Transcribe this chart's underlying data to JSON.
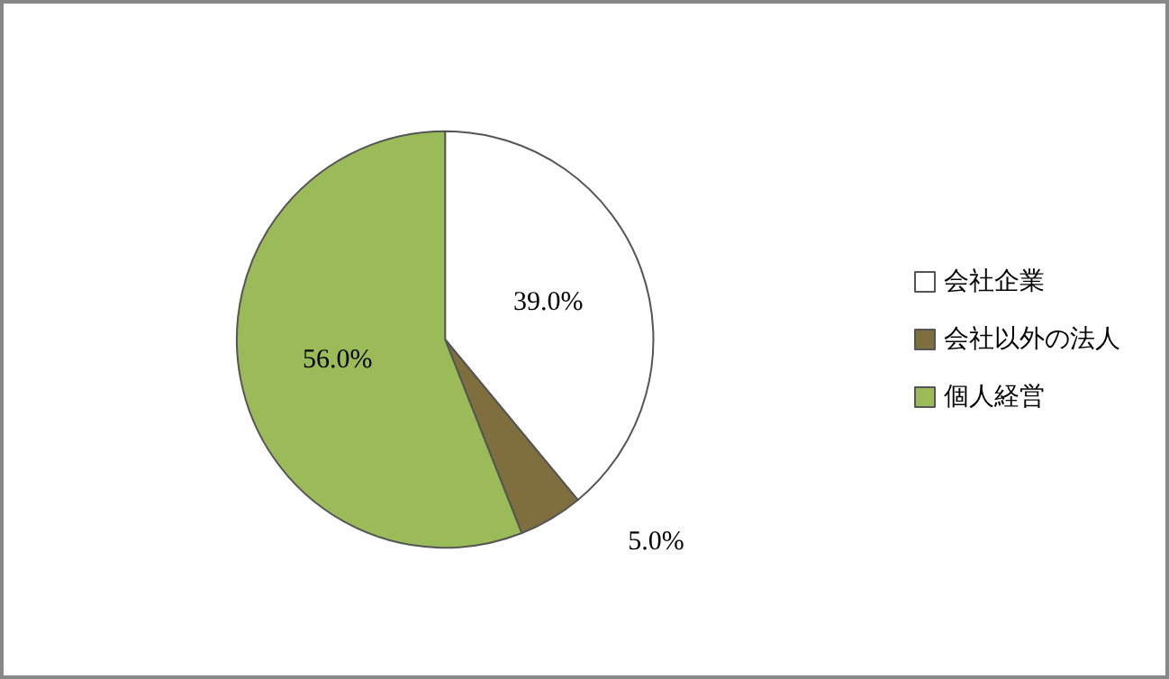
{
  "chart_data": {
    "type": "pie",
    "categories": [
      "会社企業",
      "会社以外の法人",
      "個人経営"
    ],
    "values": [
      39,
      5,
      56
    ],
    "value_labels": [
      "39.0%",
      "5.0%",
      "56.0%"
    ],
    "colors": [
      "#ffffff",
      "#7f6f3f",
      "#9bbb59"
    ],
    "legend": "right"
  }
}
